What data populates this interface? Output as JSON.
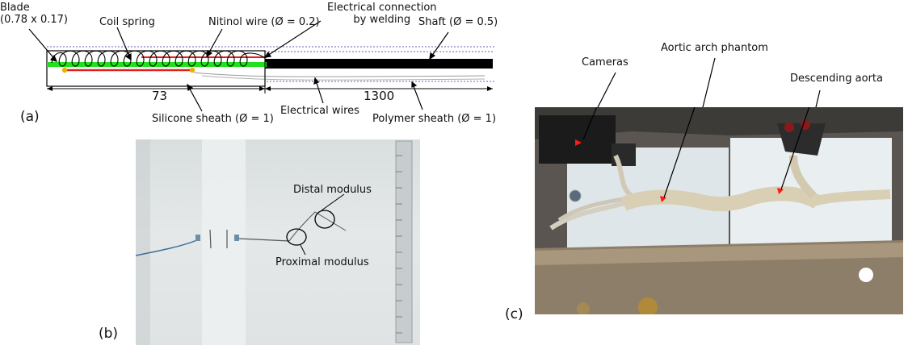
{
  "panel_a": {
    "tag": "(a)",
    "labels": {
      "blade": "Blade\n(0.78 x 0.17)",
      "coil_spring": "Coil spring",
      "nitinol_wire": "Nitinol wire (Ø = 0.2)",
      "electrical_connection": "Electrical connection\nby welding",
      "shaft": "Shaft (Ø = 0.5)",
      "silicone_sheath": "Silicone sheath (Ø = 1)",
      "electrical_wires": "Electrical wires",
      "polymer_sheath": "Polymer sheath (Ø = 1)"
    },
    "dimensions": {
      "left": "73",
      "right": "1300"
    },
    "colors": {
      "blade": "#22e01d",
      "nitinol": "#e0201f",
      "weld": "#e3b400",
      "shaft": "#000000"
    }
  },
  "panel_b": {
    "tag": "(b)",
    "labels": {
      "distal_modulus": "Distal modulus",
      "proximal_modulus": "Proximal modulus"
    }
  },
  "panel_c": {
    "tag": "(c)",
    "labels": {
      "cameras": "Cameras",
      "aortic_arch_phantom": "Aortic arch phantom",
      "descending_aorta": "Descending aorta"
    },
    "colors": {
      "marker": "#ff1a1a"
    }
  }
}
